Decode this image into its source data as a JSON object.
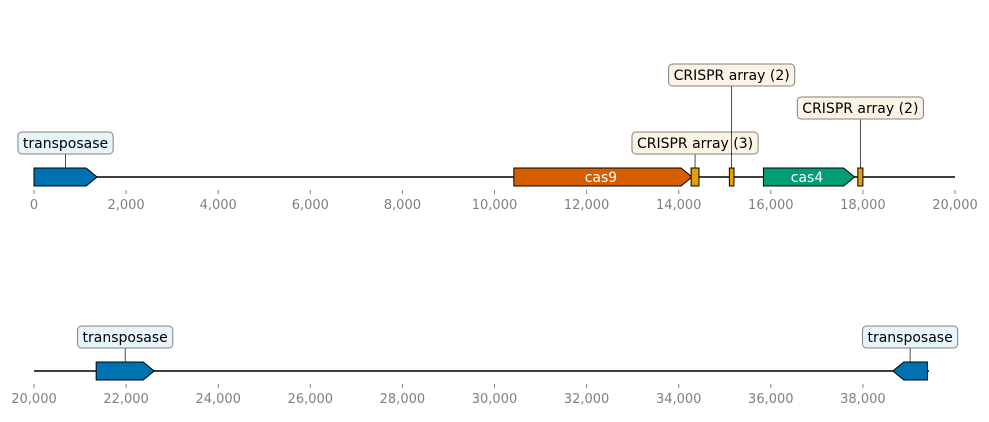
{
  "tracks": [
    {
      "range": [
        0,
        20000
      ],
      "ticks": [
        0,
        2000,
        4000,
        6000,
        8000,
        10000,
        12000,
        14000,
        16000,
        18000,
        20000
      ],
      "tick_labels": [
        "0",
        "2,000",
        "4,000",
        "6,000",
        "8,000",
        "10,000",
        "12,000",
        "14,000",
        "16,000",
        "18,000",
        "20,000"
      ],
      "features": [
        {
          "start": 0,
          "end": 1370,
          "strand": 1,
          "color": "#0072b2",
          "inline_label": "",
          "callout": "transposase",
          "callout_style": "blue",
          "callout_level": 1
        },
        {
          "start": 10420,
          "end": 14290,
          "strand": 1,
          "color": "#d55e00",
          "inline_label": "cas9",
          "callout": "",
          "callout_style": "",
          "callout_level": 0
        },
        {
          "start": 14270,
          "end": 14440,
          "strand": 0,
          "color": "#e69f00",
          "inline_label": "",
          "callout": "CRISPR array (3)",
          "callout_style": "tan",
          "callout_level": 1
        },
        {
          "start": 15100,
          "end": 15200,
          "strand": 0,
          "color": "#e69f00",
          "inline_label": "",
          "callout": "CRISPR array (2)",
          "callout_style": "tan",
          "callout_level": 3
        },
        {
          "start": 15840,
          "end": 17820,
          "strand": 1,
          "color": "#009e73",
          "inline_label": "cas4",
          "callout": "",
          "callout_style": "",
          "callout_level": 0
        },
        {
          "start": 17890,
          "end": 18000,
          "strand": 0,
          "color": "#e69f00",
          "inline_label": "",
          "callout": "CRISPR array (2)",
          "callout_style": "tan",
          "callout_level": 2
        }
      ]
    },
    {
      "range": [
        20000,
        39400
      ],
      "ticks": [
        20000,
        22000,
        24000,
        26000,
        28000,
        30000,
        32000,
        34000,
        36000,
        38000
      ],
      "tick_labels": [
        "20,000",
        "22,000",
        "24,000",
        "26,000",
        "28,000",
        "30,000",
        "32,000",
        "34,000",
        "36,000",
        "38,000"
      ],
      "features": [
        {
          "start": 21350,
          "end": 22610,
          "strand": 1,
          "color": "#0072b2",
          "inline_label": "",
          "callout": "transposase",
          "callout_style": "blue",
          "callout_level": 1
        },
        {
          "start": 38650,
          "end": 39400,
          "strand": -1,
          "color": "#0072b2",
          "inline_label": "",
          "callout": "transposase",
          "callout_style": "blue",
          "callout_level": 1
        }
      ]
    }
  ],
  "colors": {
    "callout_blue_fill": "#e8f4fb",
    "callout_tan_fill": "#fbf4e4",
    "callout_border": "#808080",
    "tick_text": "#808080",
    "backbone": "#000000"
  }
}
